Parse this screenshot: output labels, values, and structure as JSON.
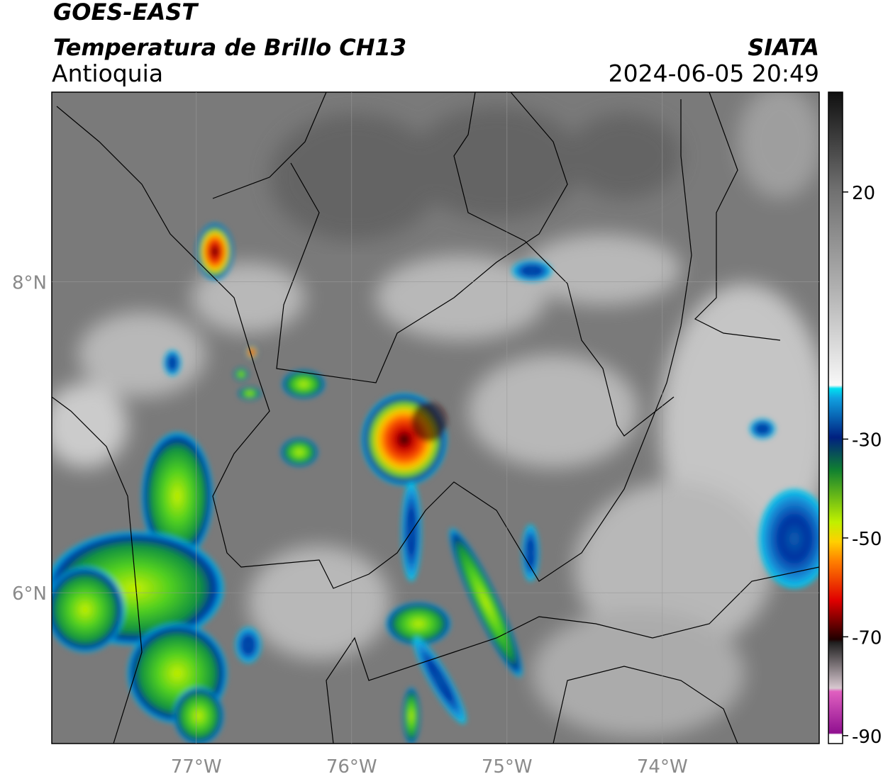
{
  "header": {
    "title": "GOES-EAST",
    "subtitle": "Temperatura de Brillo CH13",
    "region": "Antioquia",
    "source": "SIATA",
    "datetime": "2024-06-05 20:49"
  },
  "map": {
    "xlim": [
      -77.93,
      -72.99
    ],
    "ylim": [
      5.03,
      9.22
    ],
    "xticks": [
      {
        "value": -77,
        "label": "77°W"
      },
      {
        "value": -76,
        "label": "76°W"
      },
      {
        "value": -75,
        "label": "75°W"
      },
      {
        "value": -74,
        "label": "74°W"
      }
    ],
    "yticks": [
      {
        "value": 8,
        "label": "8°N"
      },
      {
        "value": 6,
        "label": "6°N"
      }
    ],
    "grid": true
  },
  "colorbar": {
    "lim": [
      -91.6,
      40.2
    ],
    "ticks": [
      20,
      -30,
      -50,
      -70,
      -90
    ]
  }
}
